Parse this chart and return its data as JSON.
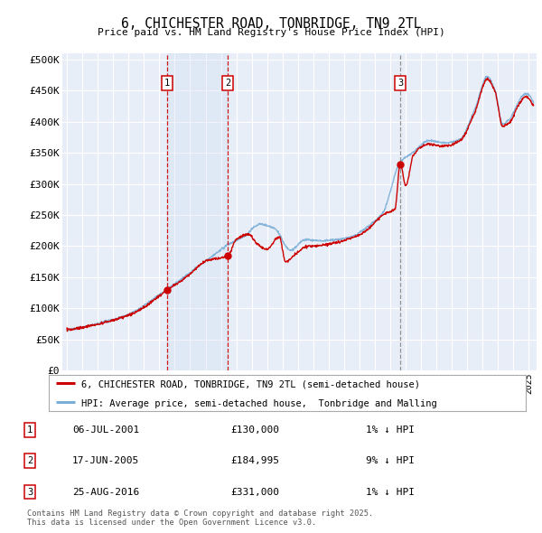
{
  "title": "6, CHICHESTER ROAD, TONBRIDGE, TN9 2TL",
  "subtitle": "Price paid vs. HM Land Registry's House Price Index (HPI)",
  "ylabel_ticks": [
    "£0",
    "£50K",
    "£100K",
    "£150K",
    "£200K",
    "£250K",
    "£300K",
    "£350K",
    "£400K",
    "£450K",
    "£500K"
  ],
  "ytick_values": [
    0,
    50000,
    100000,
    150000,
    200000,
    250000,
    300000,
    350000,
    400000,
    450000,
    500000
  ],
  "ylim": [
    0,
    510000
  ],
  "xlim_start": 1994.7,
  "xlim_end": 2025.5,
  "background_color": "#ffffff",
  "plot_bg_color": "#e8eef8",
  "grid_color": "#ffffff",
  "sale_markers": [
    {
      "year": 2001.52,
      "price": 130000,
      "label": "1",
      "vline_color": "#cc0000",
      "vline_style": "--"
    },
    {
      "year": 2005.46,
      "price": 184995,
      "label": "2",
      "vline_color": "#cc0000",
      "vline_style": "--"
    },
    {
      "year": 2016.65,
      "price": 331000,
      "label": "3",
      "vline_color": "#888888",
      "vline_style": "--"
    }
  ],
  "shaded_region": [
    2001.52,
    2005.46
  ],
  "legend_entries": [
    "6, CHICHESTER ROAD, TONBRIDGE, TN9 2TL (semi-detached house)",
    "HPI: Average price, semi-detached house,  Tonbridge and Malling"
  ],
  "table_rows": [
    {
      "num": "1",
      "date": "06-JUL-2001",
      "price": "£130,000",
      "hpi": "1% ↓ HPI"
    },
    {
      "num": "2",
      "date": "17-JUN-2005",
      "price": "£184,995",
      "hpi": "9% ↓ HPI"
    },
    {
      "num": "3",
      "date": "25-AUG-2016",
      "price": "£331,000",
      "hpi": "1% ↓ HPI"
    }
  ],
  "footer": "Contains HM Land Registry data © Crown copyright and database right 2025.\nThis data is licensed under the Open Government Licence v3.0.",
  "line_color_red": "#cc0000",
  "line_color_blue": "#7aaed6",
  "dashed_line_color": "#cc0000"
}
